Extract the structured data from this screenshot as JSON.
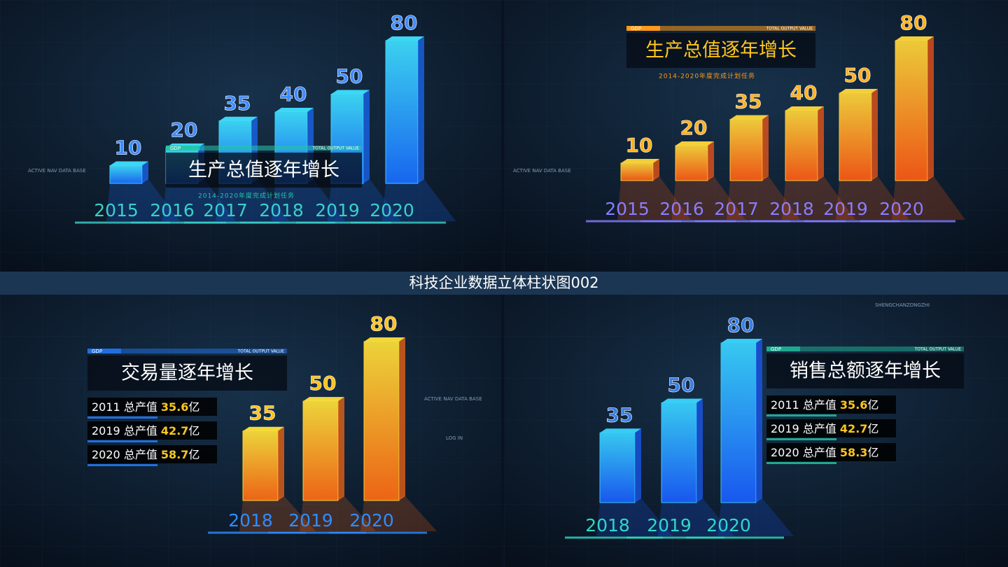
{
  "title": "科技企业数据立体柱状图002",
  "chart_data": [
    {
      "type": "bar",
      "title": "生产总值逐年增长",
      "subtitle": "2014-2020年度完成计划任务",
      "tag": "GDP",
      "tag_right": "TOTAL OUTPUT VALUE",
      "categories": [
        "2015",
        "2016",
        "2017",
        "2018",
        "2019",
        "2020"
      ],
      "values": [
        10,
        20,
        35,
        40,
        50,
        80
      ],
      "color": "#1a6cff",
      "color2": "#3fe0ff",
      "value_label_color": "#3f8cff",
      "label_color": "#39d0c8",
      "accent": "#25c6a8",
      "annotations": [
        "ACTIVE NAV DATA BASE"
      ]
    },
    {
      "type": "bar",
      "title": "生产总值逐年增长",
      "subtitle": "2014-2020年度完成计划任务",
      "tag": "GDP",
      "tag_right": "TOTAL OUTPUT VALUE",
      "categories": [
        "2015",
        "2016",
        "2017",
        "2018",
        "2019",
        "2020"
      ],
      "values": [
        10,
        20,
        35,
        40,
        50,
        80
      ],
      "color": "#ff5a14",
      "color2": "#ffd83a",
      "value_label_color": "#ffb21e",
      "label_color": "#8a7cff",
      "accent": "#ff9a1a",
      "annotations": [
        "ACTIVE NAV DATA BASE"
      ]
    },
    {
      "type": "bar",
      "title": "交易量逐年增长",
      "tag": "GDP",
      "tag_right": "TOTAL OUTPUT VALUE",
      "categories": [
        "2018",
        "2019",
        "2020"
      ],
      "values": [
        35,
        50,
        80
      ],
      "color": "#ff6a14",
      "color2": "#ffe23a",
      "value_label_color": "#ffc21a",
      "label_color": "#2f8cff",
      "accent": "#1f6fe0",
      "stats": [
        {
          "year": "2011",
          "label": "总产值",
          "value": 35.6,
          "unit": "亿"
        },
        {
          "year": "2019",
          "label": "总产值",
          "value": 42.7,
          "unit": "亿"
        },
        {
          "year": "2020",
          "label": "总产值",
          "value": 58.7,
          "unit": "亿"
        }
      ],
      "annotations": [
        "ACTIVE NAV DATA BASE",
        "LOG IN"
      ]
    },
    {
      "type": "bar",
      "title": "销售总额逐年增长",
      "tag": "GDP",
      "tag_right": "TOTAL OUTPUT VALUE",
      "categories": [
        "2018",
        "2019",
        "2020"
      ],
      "values": [
        35,
        50,
        80
      ],
      "color": "#1a5cff",
      "color2": "#3ad6ff",
      "value_label_color": "#3a7de0",
      "label_color": "#2fd8c8",
      "accent": "#1fa890",
      "stats": [
        {
          "year": "2011",
          "label": "总产值",
          "value": 35.6,
          "unit": "亿"
        },
        {
          "year": "2019",
          "label": "总产值",
          "value": 42.7,
          "unit": "亿"
        },
        {
          "year": "2020",
          "label": "总产值",
          "value": 58.3,
          "unit": "亿"
        }
      ],
      "annotations": [
        "SHENGCHANZONGZHI"
      ]
    }
  ]
}
